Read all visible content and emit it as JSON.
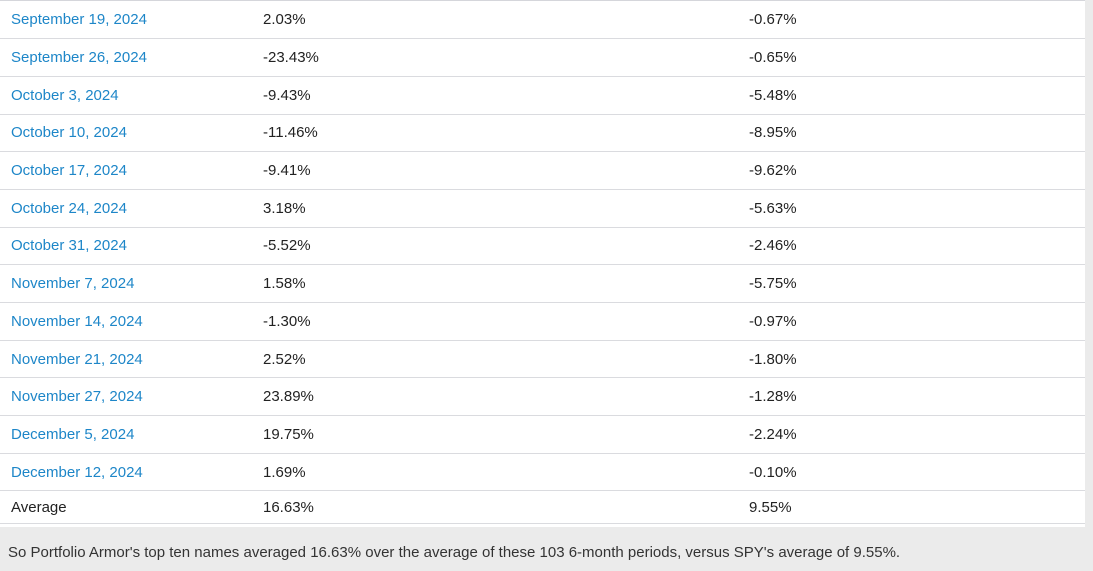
{
  "table": {
    "rows": [
      {
        "date": "September 19, 2024",
        "top_ten": "2.03%",
        "spy": "-0.67%"
      },
      {
        "date": "September 26, 2024",
        "top_ten": "-23.43%",
        "spy": "-0.65%"
      },
      {
        "date": "October 3, 2024",
        "top_ten": "-9.43%",
        "spy": "-5.48%"
      },
      {
        "date": "October 10, 2024",
        "top_ten": "-11.46%",
        "spy": "-8.95%"
      },
      {
        "date": "October 17, 2024",
        "top_ten": "-9.41%",
        "spy": "-9.62%"
      },
      {
        "date": "October 24, 2024",
        "top_ten": "3.18%",
        "spy": "-5.63%"
      },
      {
        "date": "October 31, 2024",
        "top_ten": "-5.52%",
        "spy": "-2.46%"
      },
      {
        "date": "November 7, 2024",
        "top_ten": "1.58%",
        "spy": "-5.75%"
      },
      {
        "date": "November 14, 2024",
        "top_ten": "-1.30%",
        "spy": "-0.97%"
      },
      {
        "date": "November 21, 2024",
        "top_ten": "2.52%",
        "spy": "-1.80%"
      },
      {
        "date": "November 27, 2024",
        "top_ten": "23.89%",
        "spy": "-1.28%"
      },
      {
        "date": "December 5, 2024",
        "top_ten": "19.75%",
        "spy": "-2.24%"
      },
      {
        "date": "December 12, 2024",
        "top_ten": "1.69%",
        "spy": "-0.10%"
      }
    ],
    "average_row": {
      "label": "Average",
      "top_ten": "16.63%",
      "spy": "9.55%"
    }
  },
  "footer": {
    "text": "So Portfolio Armor's top ten names averaged 16.63% over the average of these 103 6-month periods, versus SPY's average of 9.55%."
  },
  "colors": {
    "link_blue": "#1d86c8",
    "row_border": "#dadbdf",
    "page_background": "#ebebeb",
    "table_background": "#ffffff",
    "body_text": "#222222",
    "footer_text": "#333333"
  }
}
